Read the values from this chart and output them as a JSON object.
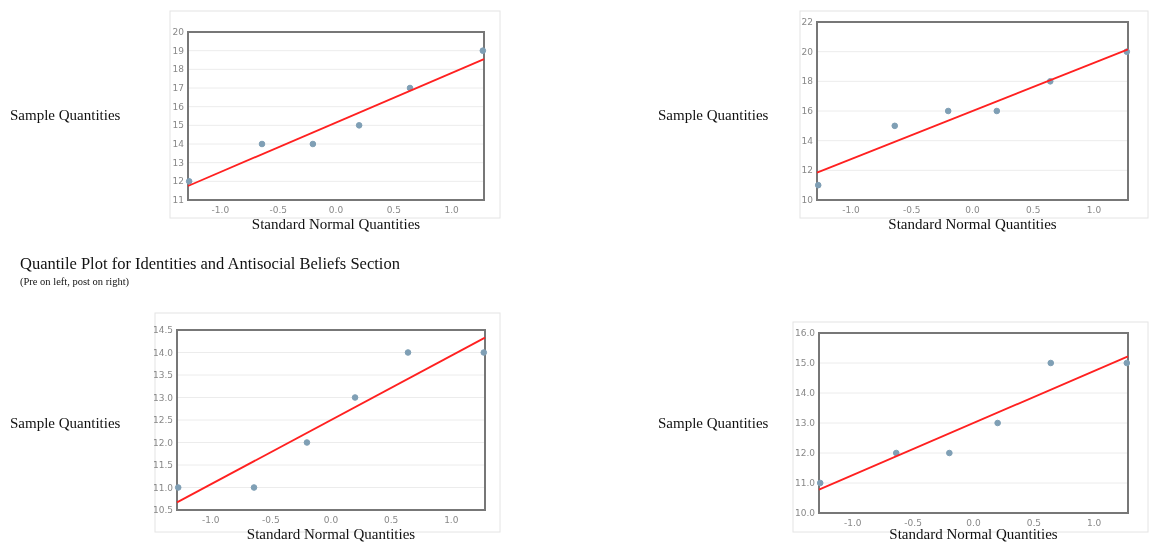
{
  "chart_data": [
    {
      "type": "scatter",
      "xlabel": "Standard Normal Quantities",
      "ylabel": "Sample Quantities",
      "xlim": [
        -1.28,
        1.28
      ],
      "ylim": [
        11,
        20
      ],
      "xticks": [
        {
          "value": -1,
          "label": "-1.0"
        },
        {
          "value": -0.5,
          "label": "-0.5"
        },
        {
          "value": 0,
          "label": "0.0"
        },
        {
          "value": 0.5,
          "label": "0.5"
        },
        {
          "value": 1,
          "label": "1.0"
        }
      ],
      "yticks": [
        11,
        12,
        13,
        14,
        15,
        16,
        17,
        18,
        19,
        20
      ],
      "grid": "y",
      "series": [
        {
          "color": "#7f9fb5",
          "marker": "circle",
          "x": [
            -1.27,
            -0.64,
            -0.2,
            0.2,
            0.64,
            1.27
          ],
          "values": [
            12,
            14,
            14,
            15,
            17,
            19
          ]
        },
        {
          "type": "line",
          "color": "#ff2020",
          "marker": "none",
          "line_style": "solid",
          "x": [
            -1.28,
            1.28
          ],
          "values": [
            11.75,
            18.55
          ]
        }
      ]
    },
    {
      "type": "scatter",
      "xlabel": "Standard Normal Quantities",
      "ylabel": "Sample Quantities",
      "xlim": [
        -1.28,
        1.28
      ],
      "ylim": [
        10,
        22
      ],
      "xticks": [
        {
          "value": -1,
          "label": "-1.0"
        },
        {
          "value": -0.5,
          "label": "-0.5"
        },
        {
          "value": 0,
          "label": "0.0"
        },
        {
          "value": 0.5,
          "label": "0.5"
        },
        {
          "value": 1,
          "label": "1.0"
        }
      ],
      "yticks": [
        10,
        12,
        14,
        16,
        18,
        20,
        22
      ],
      "grid": "y",
      "series": [
        {
          "color": "#7f9fb5",
          "marker": "circle",
          "x": [
            -1.27,
            -0.64,
            -0.2,
            0.2,
            0.64,
            1.27
          ],
          "values": [
            11,
            15,
            16,
            16,
            18,
            20
          ]
        },
        {
          "type": "line",
          "color": "#ff2020",
          "marker": "none",
          "line_style": "solid",
          "x": [
            -1.28,
            1.28
          ],
          "values": [
            11.85,
            20.15
          ]
        }
      ]
    },
    {
      "type": "scatter",
      "title": "Quantile Plot for Identities and Antisocial Beliefs Section",
      "subtitle": "(Pre on left, post on right)",
      "xlabel": "Standard Normal Quantities",
      "ylabel": "Sample Quantities",
      "xlim": [
        -1.28,
        1.28
      ],
      "ylim": [
        10.5,
        14.5
      ],
      "xticks": [
        {
          "value": -1,
          "label": "-1.0"
        },
        {
          "value": -0.5,
          "label": "-0.5"
        },
        {
          "value": 0,
          "label": "0.0"
        },
        {
          "value": 0.5,
          "label": "0.5"
        },
        {
          "value": 1,
          "label": "1.0"
        }
      ],
      "yticks": [
        10.5,
        {
          "value": 11,
          "label": "11.0"
        },
        11.5,
        {
          "value": 12,
          "label": "12.0"
        },
        12.5,
        {
          "value": 13,
          "label": "13.0"
        },
        13.5,
        {
          "value": 14,
          "label": "14.0"
        },
        14.5
      ],
      "grid": "y",
      "series": [
        {
          "color": "#7f9fb5",
          "marker": "circle",
          "x": [
            -1.27,
            -0.64,
            -0.2,
            0.2,
            0.64,
            1.27
          ],
          "values": [
            11,
            11,
            12,
            13,
            14,
            14
          ]
        },
        {
          "type": "line",
          "color": "#ff2020",
          "marker": "none",
          "line_style": "solid",
          "x": [
            -1.28,
            1.28
          ],
          "values": [
            10.67,
            14.33
          ]
        }
      ]
    },
    {
      "type": "scatter",
      "xlabel": "Standard Normal Quantities",
      "ylabel": "Sample Quantities",
      "xlim": [
        -1.28,
        1.28
      ],
      "ylim": [
        10,
        16
      ],
      "xticks": [
        {
          "value": -1,
          "label": "-1.0"
        },
        {
          "value": -0.5,
          "label": "-0.5"
        },
        {
          "value": 0,
          "label": "0.0"
        },
        {
          "value": 0.5,
          "label": "0.5"
        },
        {
          "value": 1,
          "label": "1.0"
        }
      ],
      "yticks": [
        {
          "value": 10,
          "label": "10.0"
        },
        {
          "value": 11,
          "label": "11.0"
        },
        {
          "value": 12,
          "label": "12.0"
        },
        {
          "value": 13,
          "label": "13.0"
        },
        {
          "value": 14,
          "label": "14.0"
        },
        {
          "value": 15,
          "label": "15.0"
        },
        {
          "value": 16,
          "label": "16.0"
        }
      ],
      "grid": "y",
      "series": [
        {
          "color": "#7f9fb5",
          "marker": "circle",
          "x": [
            -1.27,
            -0.64,
            -0.2,
            0.2,
            0.64,
            1.27
          ],
          "values": [
            11,
            12,
            12,
            13,
            15,
            15
          ]
        },
        {
          "type": "line",
          "color": "#ff2020",
          "marker": "none",
          "line_style": "solid",
          "x": [
            -1.28,
            1.28
          ],
          "values": [
            10.78,
            15.22
          ]
        }
      ]
    }
  ]
}
